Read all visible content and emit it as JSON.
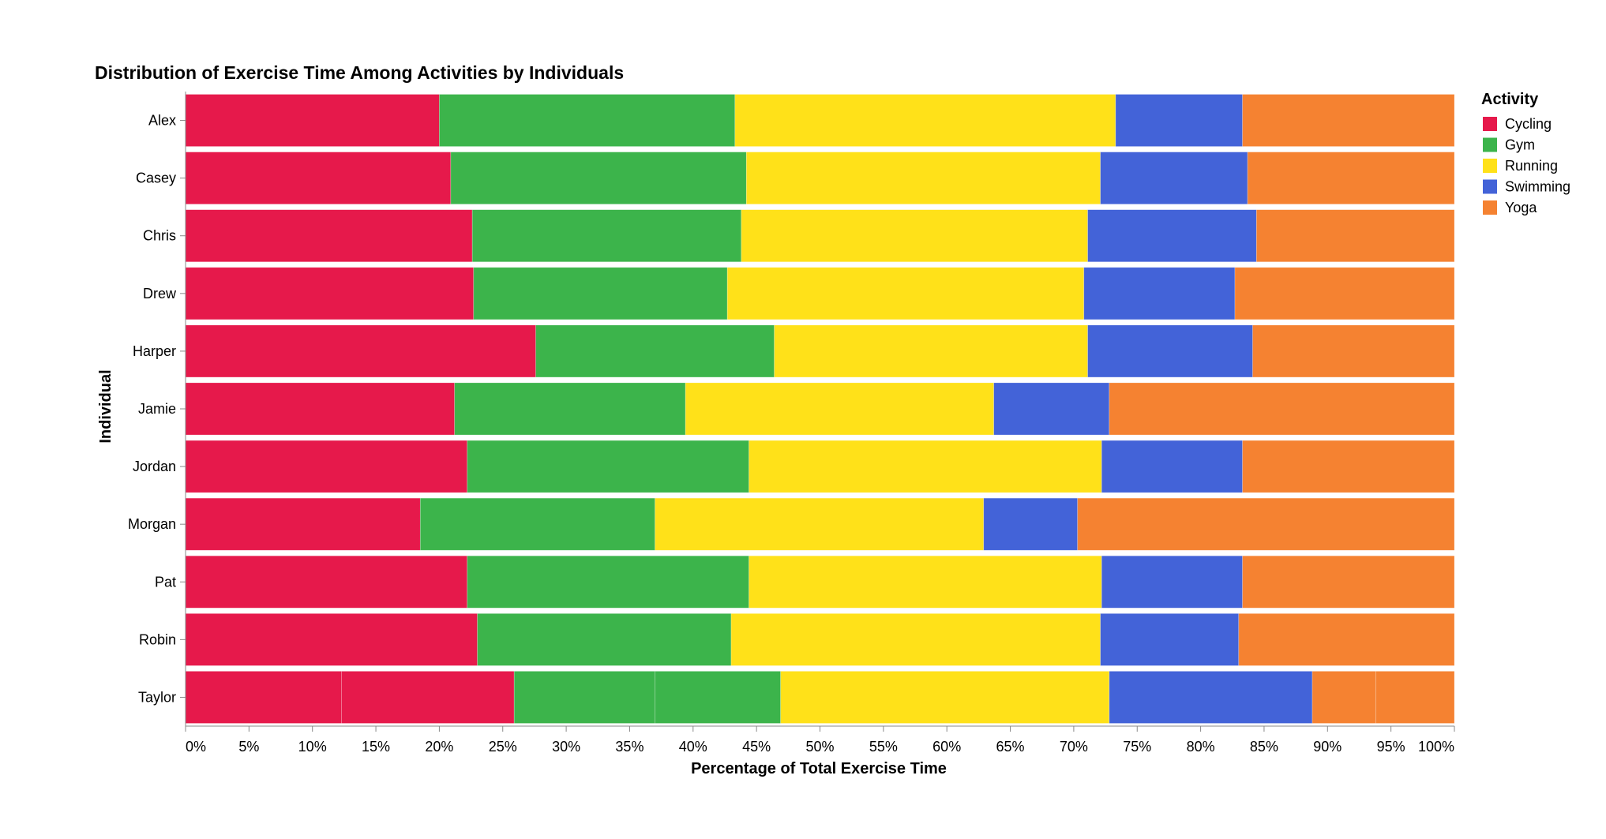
{
  "chart_data": {
    "type": "bar",
    "orientation": "horizontal",
    "stacked": "normalize",
    "title": "Distribution of Exercise Time Among Activities by Individuals",
    "xlabel": "Percentage of Total Exercise Time",
    "ylabel": "Individual",
    "xlim": [
      0,
      100
    ],
    "x_ticks": [
      "0%",
      "5%",
      "10%",
      "15%",
      "20%",
      "25%",
      "30%",
      "35%",
      "40%",
      "45%",
      "50%",
      "55%",
      "60%",
      "65%",
      "70%",
      "75%",
      "80%",
      "85%",
      "90%",
      "95%",
      "100%"
    ],
    "grid": false,
    "legend": {
      "title": "Activity",
      "placement": "right"
    },
    "categories": [
      "Alex",
      "Casey",
      "Chris",
      "Drew",
      "Harper",
      "Jamie",
      "Jordan",
      "Morgan",
      "Pat",
      "Robin",
      "Taylor"
    ],
    "series": [
      {
        "name": "Cycling",
        "color": "#e6194b",
        "values": [
          20.0,
          20.9,
          22.6,
          22.7,
          27.6,
          21.2,
          22.2,
          18.5,
          22.2,
          23.0,
          25.9
        ]
      },
      {
        "name": "Gym",
        "color": "#3cb44b",
        "values": [
          23.3,
          23.3,
          21.2,
          20.0,
          18.8,
          18.2,
          22.2,
          18.5,
          22.2,
          20.0,
          21.0
        ]
      },
      {
        "name": "Running",
        "color": "#ffe119",
        "values": [
          30.0,
          27.9,
          27.3,
          28.1,
          24.7,
          24.3,
          27.8,
          25.9,
          27.8,
          29.1,
          25.9
        ]
      },
      {
        "name": "Swimming",
        "color": "#4363d8",
        "values": [
          10.0,
          11.6,
          13.3,
          11.9,
          13.0,
          9.1,
          11.1,
          7.4,
          11.1,
          10.9,
          16.0
        ]
      },
      {
        "name": "Yoga",
        "color": "#f58231",
        "values": [
          16.7,
          16.3,
          15.6,
          17.3,
          15.9,
          27.2,
          16.7,
          29.7,
          16.7,
          17.0,
          11.2
        ]
      }
    ],
    "stack_splits": [
      {
        "individual": "Taylor",
        "activity": "Cycling",
        "values": [
          12.3,
          13.6
        ]
      },
      {
        "individual": "Taylor",
        "activity": "Gym",
        "values": [
          11.1,
          9.9
        ]
      },
      {
        "individual": "Taylor",
        "activity": "Yoga",
        "values": [
          5.0,
          6.2
        ]
      }
    ]
  }
}
